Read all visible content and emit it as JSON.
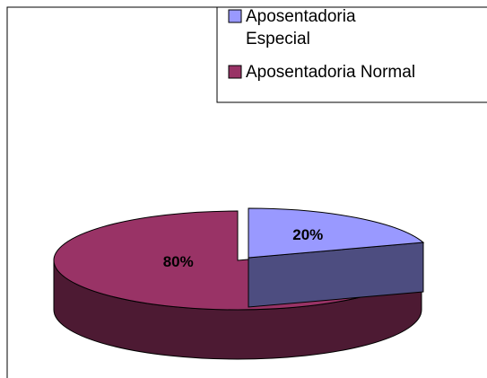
{
  "chart_data": {
    "type": "pie",
    "categories": [
      "Aposentadoria Especial",
      "Aposentadoria Normal"
    ],
    "values": [
      20,
      80
    ],
    "value_labels": [
      "20%",
      "80%"
    ],
    "colors": [
      "#9999ff",
      "#993366"
    ],
    "legend": "top-right"
  }
}
